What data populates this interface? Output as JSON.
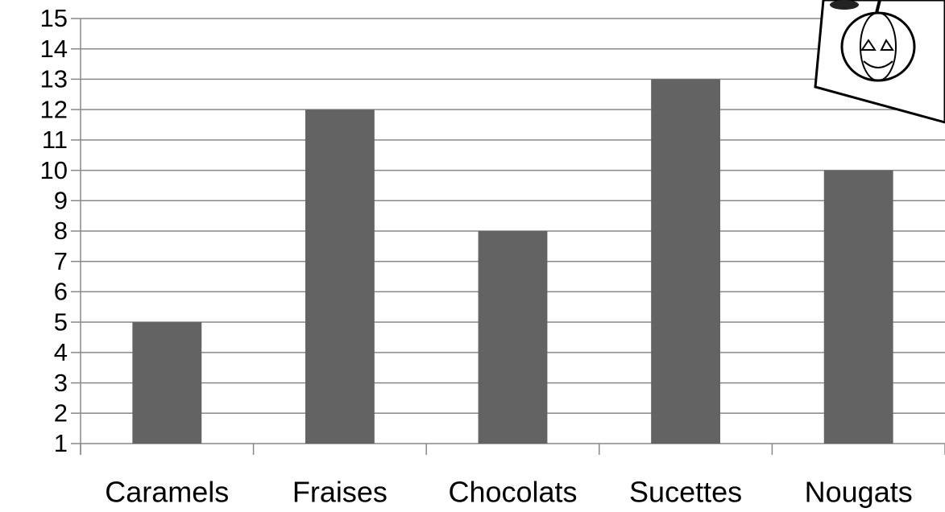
{
  "chart_data": {
    "type": "bar",
    "categories": [
      "Caramels",
      "Fraises",
      "Chocolats",
      "Sucettes",
      "Nougats"
    ],
    "values": [
      5,
      12,
      8,
      13,
      10
    ],
    "color": "#636363",
    "ylim": [
      1,
      15
    ],
    "yticks": [
      1,
      2,
      3,
      4,
      5,
      6,
      7,
      8,
      9,
      10,
      11,
      12,
      13,
      14,
      15
    ],
    "grid": true
  }
}
